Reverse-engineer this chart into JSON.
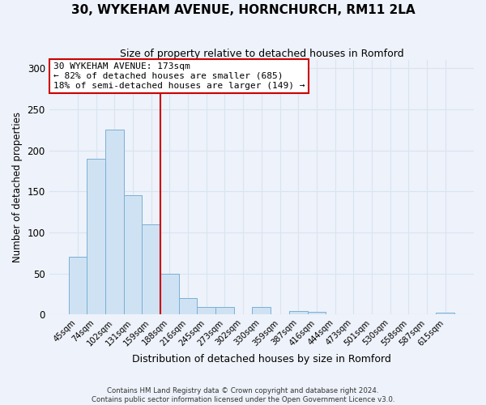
{
  "title": "30, WYKEHAM AVENUE, HORNCHURCH, RM11 2LA",
  "subtitle": "Size of property relative to detached houses in Romford",
  "xlabel": "Distribution of detached houses by size in Romford",
  "ylabel": "Number of detached properties",
  "bin_labels": [
    "45sqm",
    "74sqm",
    "102sqm",
    "131sqm",
    "159sqm",
    "188sqm",
    "216sqm",
    "245sqm",
    "273sqm",
    "302sqm",
    "330sqm",
    "359sqm",
    "387sqm",
    "416sqm",
    "444sqm",
    "473sqm",
    "501sqm",
    "530sqm",
    "558sqm",
    "587sqm",
    "615sqm"
  ],
  "bar_values": [
    70,
    190,
    225,
    145,
    110,
    50,
    20,
    9,
    9,
    0,
    9,
    0,
    4,
    3,
    0,
    0,
    0,
    0,
    0,
    0,
    2
  ],
  "bar_color": "#cfe2f3",
  "bar_edge_color": "#7ab0d4",
  "ylim": [
    0,
    310
  ],
  "yticks": [
    0,
    50,
    100,
    150,
    200,
    250,
    300
  ],
  "vline_x": 4.5,
  "vline_color": "#cc0000",
  "annotation_title": "30 WYKEHAM AVENUE: 173sqm",
  "annotation_line1": "← 82% of detached houses are smaller (685)",
  "annotation_line2": "18% of semi-detached houses are larger (149) →",
  "annotation_box_color": "#ffffff",
  "annotation_box_edge": "#cc0000",
  "footer1": "Contains HM Land Registry data © Crown copyright and database right 2024.",
  "footer2": "Contains public sector information licensed under the Open Government Licence v3.0.",
  "background_color": "#eef2fa",
  "grid_color": "#d8e4f0"
}
